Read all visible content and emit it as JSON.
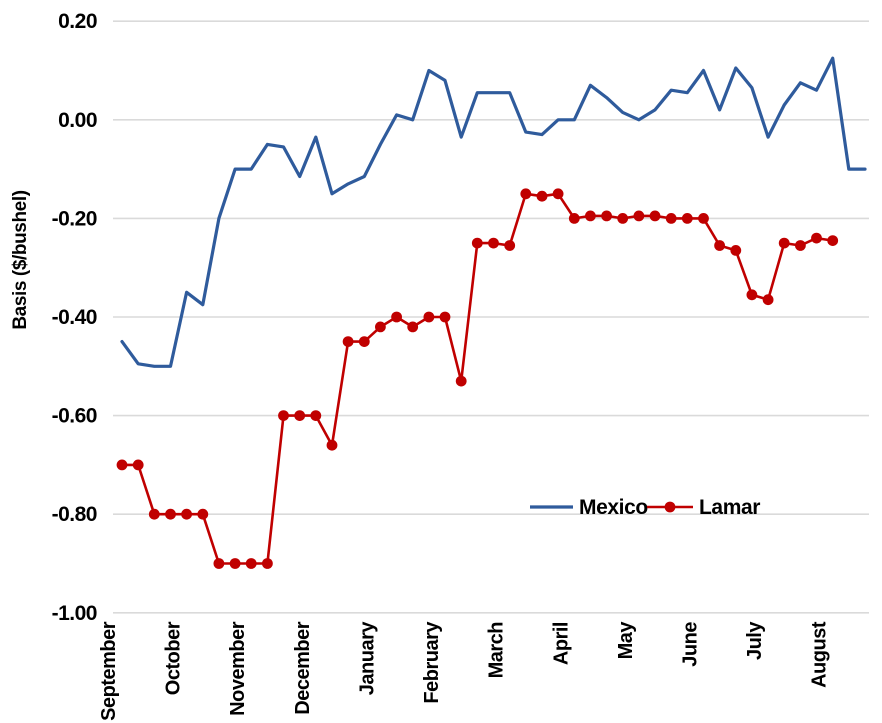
{
  "page": {
    "background": "#FFFFFF"
  },
  "colors": {
    "gridline": "#DADADA",
    "text": "#000000",
    "mexico_blue": "#2F5B9C",
    "lamar_red": "#C00000",
    "background": "#FFFFFF"
  },
  "chart_data": {
    "type": "line",
    "title": "",
    "xlabel": "",
    "ylabel": "Basis ($/bushel)",
    "ylim": [
      -1.0,
      0.2
    ],
    "yticks": [
      0.2,
      0.0,
      -0.2,
      -0.4,
      -0.6,
      -0.8,
      -1.0
    ],
    "grid": "horizontal-only",
    "x_axis": {
      "unit": "weekly points, 4 per month",
      "n_points": 47,
      "month_labels": [
        "September",
        "October",
        "November",
        "December",
        "January",
        "February",
        "March",
        "April",
        "May",
        "June",
        "July",
        "August"
      ],
      "month_label_indices": [
        0,
        4,
        8,
        12,
        16,
        20,
        24,
        28,
        32,
        36,
        40,
        44
      ]
    },
    "legend": {
      "position": "inside-right-lower",
      "entries": [
        "Mexico",
        "Lamar"
      ]
    },
    "series": [
      {
        "name": "Mexico",
        "color": "#2F5B9C",
        "marker": "none",
        "line_width": 3.2,
        "values": [
          -0.45,
          -0.495,
          -0.5,
          -0.5,
          -0.35,
          -0.375,
          -0.2,
          -0.1,
          -0.1,
          -0.05,
          -0.055,
          -0.115,
          -0.035,
          -0.15,
          -0.13,
          -0.115,
          -0.05,
          0.01,
          0.0,
          0.1,
          0.08,
          -0.035,
          0.055,
          0.055,
          0.055,
          -0.025,
          -0.03,
          0.0,
          0.0,
          0.07,
          0.045,
          0.015,
          0.0,
          0.02,
          0.06,
          0.055,
          0.1,
          0.02,
          0.105,
          0.065,
          -0.035,
          0.03,
          0.075,
          0.06,
          0.125,
          -0.1,
          -0.1
        ]
      },
      {
        "name": "Lamar",
        "color": "#C00000",
        "marker": "circle",
        "marker_radius": 5.4,
        "line_width": 2.6,
        "values": [
          -0.7,
          -0.7,
          -0.8,
          -0.8,
          -0.8,
          -0.8,
          -0.9,
          -0.9,
          -0.9,
          -0.9,
          -0.6,
          -0.6,
          -0.6,
          -0.66,
          -0.45,
          -0.45,
          -0.42,
          -0.4,
          -0.42,
          -0.4,
          -0.4,
          -0.53,
          -0.25,
          -0.25,
          -0.255,
          -0.15,
          -0.155,
          -0.15,
          -0.2,
          -0.195,
          -0.195,
          -0.2,
          -0.195,
          -0.195,
          -0.2,
          -0.2,
          -0.2,
          -0.255,
          -0.265,
          -0.355,
          -0.365,
          -0.25,
          -0.255,
          -0.24,
          -0.245
        ]
      }
    ]
  }
}
